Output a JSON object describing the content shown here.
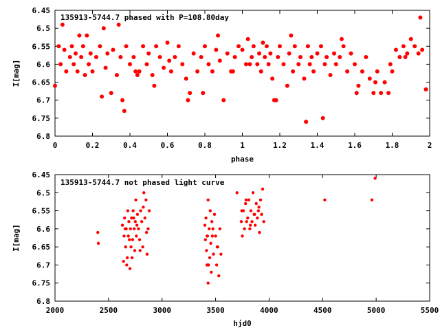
{
  "chart_data": [
    {
      "type": "scatter",
      "title": "135913-5744.7 phased with P=108.80day",
      "xlabel": "phase",
      "ylabel": "I[mag]",
      "xlim": [
        0,
        2
      ],
      "ylim": [
        6.45,
        6.8
      ],
      "y_inverted": true,
      "x_ticks": [
        "0",
        "0.2",
        "0.4",
        "0.6",
        "0.8",
        "1",
        "1.2",
        "1.4",
        "1.6",
        "1.8",
        "2"
      ],
      "y_ticks": [
        "6.45",
        "6.5",
        "6.55",
        "6.6",
        "6.65",
        "6.7",
        "6.75",
        "6.8"
      ],
      "grid": false,
      "marker_color": "#ff0000",
      "series": [
        {
          "x": [
            0.0,
            0.02,
            0.03,
            0.05,
            0.06,
            0.08,
            0.09,
            0.1,
            0.12,
            0.13,
            0.14,
            0.15,
            0.16,
            0.18,
            0.19,
            0.2,
            0.22,
            0.24,
            0.25,
            0.27,
            0.28,
            0.3,
            0.31,
            0.33,
            0.35,
            0.36,
            0.37,
            0.38,
            0.4,
            0.42,
            0.44,
            0.45,
            0.47,
            0.49,
            0.5,
            0.52,
            0.54,
            0.56,
            0.58,
            0.6,
            0.62,
            0.64,
            0.66,
            0.68,
            0.7,
            0.72,
            0.74,
            0.76,
            0.78,
            0.8,
            0.82,
            0.84,
            0.86,
            0.88,
            0.9,
            0.92,
            0.94,
            0.96,
            0.98,
            1.0,
            1.02,
            1.03,
            1.05,
            1.06,
            1.08,
            1.09,
            1.1,
            1.12,
            1.13,
            1.14,
            1.15,
            1.16,
            1.18,
            1.19,
            1.2,
            1.22,
            1.24,
            1.25,
            1.27,
            1.28,
            1.3,
            1.31,
            1.33,
            1.35,
            1.36,
            1.37,
            1.38,
            1.4,
            1.42,
            1.44,
            1.45,
            1.47,
            1.49,
            1.5,
            1.52,
            1.54,
            1.56,
            1.58,
            1.6,
            1.62,
            1.64,
            1.66,
            1.68,
            1.7,
            1.72,
            1.74,
            1.76,
            1.78,
            1.8,
            1.82,
            1.84,
            1.86,
            1.88,
            1.9,
            1.92,
            1.94,
            1.96,
            1.98,
            0.04,
            0.11,
            0.17,
            0.26,
            0.34,
            0.43,
            0.53,
            0.61,
            0.71,
            0.79,
            0.87,
            0.95,
            1.04,
            1.11,
            1.17,
            1.26,
            1.34,
            1.43,
            1.53,
            1.61,
            1.71,
            1.79,
            1.87,
            1.95
          ],
          "y": [
            6.66,
            6.55,
            6.6,
            6.56,
            6.62,
            6.58,
            6.55,
            6.6,
            6.62,
            6.52,
            6.58,
            6.55,
            6.63,
            6.6,
            6.57,
            6.62,
            6.58,
            6.55,
            6.69,
            6.61,
            6.57,
            6.68,
            6.56,
            6.63,
            6.58,
            6.7,
            6.73,
            6.55,
            6.6,
            6.58,
            6.63,
            6.62,
            6.55,
            6.6,
            6.57,
            6.63,
            6.55,
            6.58,
            6.61,
            6.54,
            6.62,
            6.58,
            6.55,
            6.6,
            6.64,
            6.68,
            6.57,
            6.62,
            6.58,
            6.55,
            6.6,
            6.62,
            6.56,
            6.59,
            6.7,
            6.57,
            6.62,
            6.58,
            6.55,
            6.56,
            6.6,
            6.53,
            6.58,
            6.55,
            6.6,
            6.57,
            6.62,
            6.58,
            6.55,
            6.6,
            6.57,
            6.64,
            6.7,
            6.58,
            6.55,
            6.6,
            6.66,
            6.57,
            6.62,
            6.55,
            6.6,
            6.58,
            6.64,
            6.55,
            6.6,
            6.58,
            6.62,
            6.57,
            6.55,
            6.6,
            6.58,
            6.63,
            6.57,
            6.6,
            6.58,
            6.55,
            6.62,
            6.57,
            6.6,
            6.66,
            6.62,
            6.58,
            6.64,
            6.68,
            6.62,
            6.68,
            6.65,
            6.68,
            6.62,
            6.56,
            6.58,
            6.55,
            6.57,
            6.53,
            6.55,
            6.57,
            6.56,
            6.67,
            6.49,
            6.57,
            6.52,
            6.5,
            6.49,
            6.62,
            6.66,
            6.59,
            6.7,
            6.68,
            6.52,
            6.62,
            6.6,
            6.54,
            6.7,
            6.52,
            6.76,
            6.75,
            6.53,
            6.68,
            6.65,
            6.6,
            6.58,
            6.47
          ]
        }
      ]
    },
    {
      "type": "scatter",
      "title": "135913-5744.7 not phased light curve",
      "xlabel": "hjd0",
      "ylabel": "I[mag]",
      "xlim": [
        2000,
        5500
      ],
      "ylim": [
        6.45,
        6.8
      ],
      "y_inverted": true,
      "x_ticks": [
        "2000",
        "2500",
        "3000",
        "3500",
        "4000",
        "4500",
        "5000",
        "5500"
      ],
      "y_ticks": [
        "6.45",
        "6.5",
        "6.55",
        "6.6",
        "6.65",
        "6.7",
        "6.75",
        "6.8"
      ],
      "grid": false,
      "marker_color": "#ff0000",
      "series": [
        {
          "x": [
            2400,
            2405,
            2630,
            2640,
            2645,
            2650,
            2660,
            2665,
            2670,
            2680,
            2685,
            2690,
            2700,
            2705,
            2710,
            2715,
            2720,
            2725,
            2730,
            2740,
            2745,
            2750,
            2755,
            2760,
            2770,
            2780,
            2790,
            2800,
            2810,
            2820,
            2830,
            2840,
            2850,
            2860,
            2870,
            2880,
            3400,
            3405,
            3410,
            3415,
            3420,
            3425,
            3430,
            3440,
            3445,
            3450,
            3455,
            3460,
            3465,
            3470,
            3480,
            3490,
            3500,
            3510,
            3520,
            3530,
            3540,
            3550,
            3430,
            3420,
            3700,
            3740,
            3750,
            3760,
            3770,
            3780,
            3790,
            3800,
            3810,
            3820,
            3830,
            3840,
            3850,
            3860,
            3870,
            3880,
            3890,
            3900,
            3910,
            3920,
            3930,
            3940,
            3950,
            4520,
            4960,
            4990,
            2655,
            2675,
            2695,
            2735,
            2765,
            2795,
            2825,
            2855,
            3435,
            3475,
            3515,
            3745,
            3785,
            3825,
            3865,
            3905
          ],
          "y": [
            6.61,
            6.64,
            6.59,
            6.69,
            6.62,
            6.57,
            6.65,
            6.6,
            6.7,
            6.55,
            6.62,
            6.58,
            6.71,
            6.6,
            6.65,
            6.57,
            6.68,
            6.63,
            6.55,
            6.6,
            6.66,
            6.58,
            6.52,
            6.62,
            6.56,
            6.6,
            6.63,
            6.55,
            6.58,
            6.65,
            6.5,
            6.57,
            6.52,
            6.67,
            6.6,
            6.55,
            6.59,
            6.63,
            6.57,
            6.66,
            6.7,
            6.62,
            6.75,
            6.6,
            6.68,
            6.55,
            6.64,
            6.72,
            6.58,
            6.62,
            6.67,
            6.56,
            6.62,
            6.7,
            6.65,
            6.73,
            6.6,
            6.67,
            6.52,
            6.62,
            6.5,
            6.58,
            6.62,
            6.55,
            6.6,
            6.53,
            6.58,
            6.57,
            6.52,
            6.6,
            6.55,
            6.58,
            6.5,
            6.56,
            6.59,
            6.53,
            6.57,
            6.55,
            6.61,
            6.52,
            6.56,
            6.49,
            6.58,
            6.52,
            6.52,
            6.46,
            6.6,
            6.68,
            6.63,
            6.57,
            6.59,
            6.66,
            6.54,
            6.61,
            6.7,
            6.6,
            6.65,
            6.55,
            6.52,
            6.59,
            6.56,
            6.54
          ]
        }
      ]
    }
  ]
}
